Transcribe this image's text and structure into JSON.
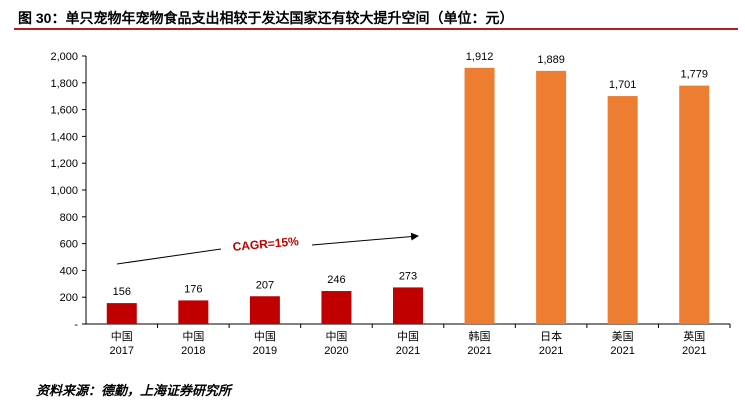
{
  "title": "图 30：单只宠物年宠物食品支出相较于发达国家还有较大提升空间（单位：元）",
  "source": "资料来源：德勤，上海证券研究所",
  "colors": {
    "china": "#c00000",
    "foreign": "#ed7d31",
    "accent": "#b71c1c"
  },
  "chart_data": {
    "type": "bar",
    "title": "单只宠物年宠物食品支出相较于发达国家还有较大提升空间（单位：元）",
    "xlabel": "",
    "ylabel": "",
    "ylim": [
      0,
      2000
    ],
    "yticks": [
      "-",
      "200",
      "400",
      "600",
      "800",
      "1,000",
      "1,200",
      "1,400",
      "1,600",
      "1,800",
      "2,000"
    ],
    "categories": [
      {
        "country": "中国",
        "year": "2017"
      },
      {
        "country": "中国",
        "year": "2018"
      },
      {
        "country": "中国",
        "year": "2019"
      },
      {
        "country": "中国",
        "year": "2020"
      },
      {
        "country": "中国",
        "year": "2021"
      },
      {
        "country": "韩国",
        "year": "2021"
      },
      {
        "country": "日本",
        "year": "2021"
      },
      {
        "country": "美国",
        "year": "2021"
      },
      {
        "country": "英国",
        "year": "2021"
      }
    ],
    "values": [
      156,
      176,
      207,
      246,
      273,
      1912,
      1889,
      1701,
      1779
    ],
    "labels": [
      "156",
      "176",
      "207",
      "246",
      "273",
      "1,912",
      "1,889",
      "1,701",
      "1,779"
    ],
    "bar_groups": [
      "china",
      "china",
      "china",
      "china",
      "china",
      "foreign",
      "foreign",
      "foreign",
      "foreign"
    ],
    "annotation": {
      "text": "CAGR=15%"
    }
  }
}
